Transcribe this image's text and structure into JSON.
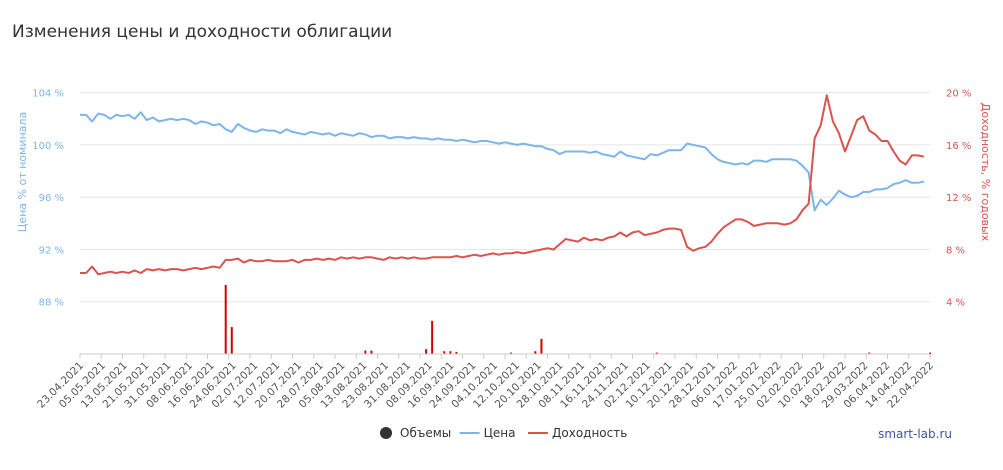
{
  "chart_data": {
    "type": "line",
    "title": "Изменения цены и доходности облигации",
    "left_axis": {
      "label": "Цена % от номинала",
      "ticks": [
        {
          "v": 104,
          "t": "104 %"
        },
        {
          "v": 100,
          "t": "100 %"
        },
        {
          "v": 96,
          "t": "96 %"
        },
        {
          "v": 92,
          "t": "92 %"
        },
        {
          "v": 88,
          "t": "88 %"
        }
      ],
      "range": [
        84.0,
        106.5
      ],
      "color": "#7cb5ec"
    },
    "right_axis": {
      "label": "Доходность, % годовых",
      "ticks": [
        {
          "v": 20,
          "t": "20 %"
        },
        {
          "v": 16,
          "t": "16 %"
        },
        {
          "v": 12,
          "t": "12 %"
        },
        {
          "v": 8,
          "t": "8 %"
        },
        {
          "v": 4,
          "t": "4 %"
        }
      ],
      "range": [
        0.0,
        22.5
      ],
      "color": "#d9534f"
    },
    "x_labels": [
      "23.04.2021",
      "05.05.2021",
      "13.05.2021",
      "21.05.2021",
      "31.05.2021",
      "08.06.2021",
      "16.06.2021",
      "24.06.2021",
      "02.07.2021",
      "12.07.2021",
      "20.07.2021",
      "28.07.2021",
      "05.08.2021",
      "13.08.2021",
      "23.08.2021",
      "31.08.2021",
      "08.09.2021",
      "16.09.2021",
      "24.09.2021",
      "04.10.2021",
      "12.10.2021",
      "20.10.2021",
      "28.10.2021",
      "08.11.2021",
      "16.11.2021",
      "24.11.2021",
      "02.12.2021",
      "10.12.2021",
      "20.12.2021",
      "28.12.2021",
      "06.01.2022",
      "17.01.2022",
      "25.01.2022",
      "02.02.2022",
      "10.02.2022",
      "18.02.2022",
      "29.03.2022",
      "06.04.2022",
      "14.04.2022",
      "22.04.2022"
    ],
    "series": [
      {
        "name": "Цена",
        "axis": "left",
        "color": "#7cb5ec",
        "points": [
          [
            0,
            102.3
          ],
          [
            1,
            102.3
          ],
          [
            2,
            101.8
          ],
          [
            3,
            102.4
          ],
          [
            4,
            102.3
          ],
          [
            5,
            102.0
          ],
          [
            6,
            102.3
          ],
          [
            7,
            102.2
          ],
          [
            8,
            102.3
          ],
          [
            9,
            102.0
          ],
          [
            10,
            102.5
          ],
          [
            11,
            101.9
          ],
          [
            12,
            102.1
          ],
          [
            13,
            101.8
          ],
          [
            14,
            101.9
          ],
          [
            15,
            102.0
          ],
          [
            16,
            101.9
          ],
          [
            17,
            102.0
          ],
          [
            18,
            101.9
          ],
          [
            19,
            101.6
          ],
          [
            20,
            101.8
          ],
          [
            21,
            101.7
          ],
          [
            22,
            101.5
          ],
          [
            23,
            101.6
          ],
          [
            24,
            101.2
          ],
          [
            25,
            101.0
          ],
          [
            26,
            101.6
          ],
          [
            27,
            101.3
          ],
          [
            28,
            101.1
          ],
          [
            29,
            101.0
          ],
          [
            30,
            101.2
          ],
          [
            31,
            101.1
          ],
          [
            32,
            101.1
          ],
          [
            33,
            100.9
          ],
          [
            34,
            101.2
          ],
          [
            35,
            101.0
          ],
          [
            36,
            100.9
          ],
          [
            37,
            100.8
          ],
          [
            38,
            101.0
          ],
          [
            39,
            100.9
          ],
          [
            40,
            100.8
          ],
          [
            41,
            100.9
          ],
          [
            42,
            100.7
          ],
          [
            43,
            100.9
          ],
          [
            44,
            100.8
          ],
          [
            45,
            100.7
          ],
          [
            46,
            100.9
          ],
          [
            47,
            100.8
          ],
          [
            48,
            100.6
          ],
          [
            49,
            100.7
          ],
          [
            50,
            100.7
          ],
          [
            51,
            100.5
          ],
          [
            52,
            100.6
          ],
          [
            53,
            100.6
          ],
          [
            54,
            100.5
          ],
          [
            55,
            100.6
          ],
          [
            56,
            100.5
          ],
          [
            57,
            100.5
          ],
          [
            58,
            100.4
          ],
          [
            59,
            100.5
          ],
          [
            60,
            100.4
          ],
          [
            61,
            100.4
          ],
          [
            62,
            100.3
          ],
          [
            63,
            100.4
          ],
          [
            64,
            100.3
          ],
          [
            65,
            100.2
          ],
          [
            66,
            100.3
          ],
          [
            67,
            100.3
          ],
          [
            68,
            100.2
          ],
          [
            69,
            100.1
          ],
          [
            70,
            100.2
          ],
          [
            71,
            100.1
          ],
          [
            72,
            100.0
          ],
          [
            73,
            100.1
          ],
          [
            74,
            100.0
          ],
          [
            75,
            99.9
          ],
          [
            76,
            99.9
          ],
          [
            77,
            99.7
          ],
          [
            78,
            99.6
          ],
          [
            79,
            99.3
          ],
          [
            80,
            99.5
          ],
          [
            81,
            99.5
          ],
          [
            82,
            99.5
          ],
          [
            83,
            99.5
          ],
          [
            84,
            99.4
          ],
          [
            85,
            99.5
          ],
          [
            86,
            99.3
          ],
          [
            87,
            99.2
          ],
          [
            88,
            99.1
          ],
          [
            89,
            99.5
          ],
          [
            90,
            99.2
          ],
          [
            91,
            99.1
          ],
          [
            92,
            99.0
          ],
          [
            93,
            98.9
          ],
          [
            94,
            99.3
          ],
          [
            95,
            99.2
          ],
          [
            96,
            99.4
          ],
          [
            97,
            99.6
          ],
          [
            98,
            99.6
          ],
          [
            99,
            99.6
          ],
          [
            100,
            100.1
          ],
          [
            101,
            100.0
          ],
          [
            102,
            99.9
          ],
          [
            103,
            99.8
          ],
          [
            104,
            99.3
          ],
          [
            105,
            98.9
          ],
          [
            106,
            98.7
          ],
          [
            107,
            98.6
          ],
          [
            108,
            98.5
          ],
          [
            109,
            98.6
          ],
          [
            110,
            98.5
          ],
          [
            111,
            98.8
          ],
          [
            112,
            98.8
          ],
          [
            113,
            98.7
          ],
          [
            114,
            98.9
          ],
          [
            115,
            98.9
          ],
          [
            116,
            98.9
          ],
          [
            117,
            98.9
          ],
          [
            118,
            98.8
          ],
          [
            119,
            98.4
          ],
          [
            120,
            97.9
          ],
          [
            121,
            95.0
          ],
          [
            122,
            95.8
          ],
          [
            123,
            95.4
          ],
          [
            124,
            95.9
          ],
          [
            125,
            96.5
          ],
          [
            126,
            96.2
          ],
          [
            127,
            96.0
          ],
          [
            128,
            96.1
          ],
          [
            129,
            96.4
          ],
          [
            130,
            96.4
          ],
          [
            131,
            96.6
          ],
          [
            132,
            96.6
          ],
          [
            133,
            96.7
          ],
          [
            134,
            97.0
          ],
          [
            135,
            97.1
          ],
          [
            136,
            97.3
          ],
          [
            137,
            97.1
          ],
          [
            138,
            97.1
          ],
          [
            139,
            97.2
          ]
        ]
      },
      {
        "name": "Доходность",
        "axis": "right",
        "color": "#d9534f",
        "points": [
          [
            0,
            6.2
          ],
          [
            1,
            6.2
          ],
          [
            2,
            6.7
          ],
          [
            3,
            6.1
          ],
          [
            4,
            6.2
          ],
          [
            5,
            6.3
          ],
          [
            6,
            6.2
          ],
          [
            7,
            6.3
          ],
          [
            8,
            6.2
          ],
          [
            9,
            6.4
          ],
          [
            10,
            6.2
          ],
          [
            11,
            6.5
          ],
          [
            12,
            6.4
          ],
          [
            13,
            6.5
          ],
          [
            14,
            6.4
          ],
          [
            15,
            6.5
          ],
          [
            16,
            6.5
          ],
          [
            17,
            6.4
          ],
          [
            18,
            6.5
          ],
          [
            19,
            6.6
          ],
          [
            20,
            6.5
          ],
          [
            21,
            6.6
          ],
          [
            22,
            6.7
          ],
          [
            23,
            6.6
          ],
          [
            24,
            7.2
          ],
          [
            25,
            7.2
          ],
          [
            26,
            7.3
          ],
          [
            27,
            7.0
          ],
          [
            28,
            7.2
          ],
          [
            29,
            7.1
          ],
          [
            30,
            7.1
          ],
          [
            31,
            7.2
          ],
          [
            32,
            7.1
          ],
          [
            33,
            7.1
          ],
          [
            34,
            7.1
          ],
          [
            35,
            7.2
          ],
          [
            36,
            7.0
          ],
          [
            37,
            7.2
          ],
          [
            38,
            7.2
          ],
          [
            39,
            7.3
          ],
          [
            40,
            7.2
          ],
          [
            41,
            7.3
          ],
          [
            42,
            7.2
          ],
          [
            43,
            7.4
          ],
          [
            44,
            7.3
          ],
          [
            45,
            7.4
          ],
          [
            46,
            7.3
          ],
          [
            47,
            7.4
          ],
          [
            48,
            7.4
          ],
          [
            49,
            7.3
          ],
          [
            50,
            7.2
          ],
          [
            51,
            7.4
          ],
          [
            52,
            7.3
          ],
          [
            53,
            7.4
          ],
          [
            54,
            7.3
          ],
          [
            55,
            7.4
          ],
          [
            56,
            7.3
          ],
          [
            57,
            7.3
          ],
          [
            58,
            7.4
          ],
          [
            59,
            7.4
          ],
          [
            60,
            7.4
          ],
          [
            61,
            7.4
          ],
          [
            62,
            7.5
          ],
          [
            63,
            7.4
          ],
          [
            64,
            7.5
          ],
          [
            65,
            7.6
          ],
          [
            66,
            7.5
          ],
          [
            67,
            7.6
          ],
          [
            68,
            7.7
          ],
          [
            69,
            7.6
          ],
          [
            70,
            7.7
          ],
          [
            71,
            7.7
          ],
          [
            72,
            7.8
          ],
          [
            73,
            7.7
          ],
          [
            74,
            7.8
          ],
          [
            75,
            7.9
          ],
          [
            76,
            8.0
          ],
          [
            77,
            8.1
          ],
          [
            78,
            8.0
          ],
          [
            79,
            8.4
          ],
          [
            80,
            8.8
          ],
          [
            81,
            8.7
          ],
          [
            82,
            8.6
          ],
          [
            83,
            8.9
          ],
          [
            84,
            8.7
          ],
          [
            85,
            8.8
          ],
          [
            86,
            8.7
          ],
          [
            87,
            8.9
          ],
          [
            88,
            9.0
          ],
          [
            89,
            9.3
          ],
          [
            90,
            9.0
          ],
          [
            91,
            9.3
          ],
          [
            92,
            9.4
          ],
          [
            93,
            9.1
          ],
          [
            94,
            9.2
          ],
          [
            95,
            9.3
          ],
          [
            96,
            9.5
          ],
          [
            97,
            9.6
          ],
          [
            98,
            9.6
          ],
          [
            99,
            9.5
          ],
          [
            100,
            8.2
          ],
          [
            101,
            7.9
          ],
          [
            102,
            8.1
          ],
          [
            103,
            8.2
          ],
          [
            104,
            8.6
          ],
          [
            105,
            9.2
          ],
          [
            106,
            9.7
          ],
          [
            107,
            10.0
          ],
          [
            108,
            10.3
          ],
          [
            109,
            10.3
          ],
          [
            110,
            10.1
          ],
          [
            111,
            9.8
          ],
          [
            112,
            9.9
          ],
          [
            113,
            10.0
          ],
          [
            114,
            10.0
          ],
          [
            115,
            10.0
          ],
          [
            116,
            9.9
          ],
          [
            117,
            10.0
          ],
          [
            118,
            10.3
          ],
          [
            119,
            11.0
          ],
          [
            120,
            11.5
          ],
          [
            121,
            16.5
          ],
          [
            122,
            17.5
          ],
          [
            123,
            19.8
          ],
          [
            124,
            17.8
          ],
          [
            125,
            16.9
          ],
          [
            126,
            15.5
          ],
          [
            127,
            16.7
          ],
          [
            128,
            17.9
          ],
          [
            129,
            18.2
          ],
          [
            130,
            17.1
          ],
          [
            131,
            16.8
          ],
          [
            132,
            16.3
          ],
          [
            133,
            16.3
          ],
          [
            134,
            15.5
          ],
          [
            135,
            14.8
          ],
          [
            136,
            14.5
          ],
          [
            137,
            15.2
          ],
          [
            138,
            15.2
          ],
          [
            139,
            15.1
          ]
        ]
      },
      {
        "name": "Объемы",
        "color": "#d40000",
        "bars": [
          [
            24,
            1.0
          ],
          [
            25,
            0.39
          ],
          [
            47,
            0.05
          ],
          [
            48,
            0.05
          ],
          [
            57,
            0.07
          ],
          [
            62,
            0.03
          ],
          [
            58,
            0.48
          ],
          [
            60,
            0.04
          ],
          [
            61,
            0.04
          ],
          [
            71,
            0.02
          ],
          [
            75,
            0.04
          ],
          [
            76,
            0.22
          ],
          [
            95,
            0.02
          ],
          [
            130,
            0.02
          ],
          [
            140,
            0.02
          ]
        ]
      }
    ],
    "legend": [
      {
        "label": "Объемы",
        "color": "#333333",
        "shape": "dot"
      },
      {
        "label": "Цена",
        "color": "#7cb5ec",
        "shape": "line"
      },
      {
        "label": "Доходность",
        "color": "#d9534f",
        "shape": "line"
      }
    ],
    "legend_position": "bottom-center",
    "watermark": "smart-lab.ru",
    "grid": "horizontal"
  }
}
